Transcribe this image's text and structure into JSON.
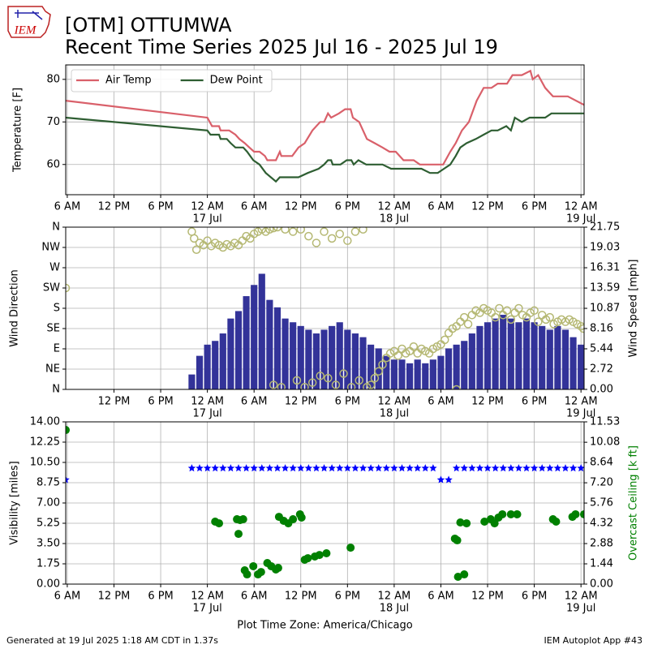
{
  "header": {
    "logo_text": "IEM",
    "title": "[OTM] OTTUMWA",
    "subtitle": "Recent Time Series 2025 Jul 16 - 2025 Jul 19"
  },
  "footer": {
    "left": "Generated at 19 Jul 2025 1:18 AM CDT in 1.37s",
    "right": "IEM Autoplot App #43"
  },
  "chart_data": [
    {
      "type": "line",
      "ylabel": "Temperature [F]",
      "grid": true,
      "legend": "upper left",
      "xlim": [
        5.8,
        72.4
      ],
      "ylim": [
        52.9,
        83.4
      ],
      "yticks": [
        60,
        70,
        80
      ],
      "xticks": [
        {
          "value": 6,
          "label": "6 AM"
        },
        {
          "value": 12,
          "label": "12 PM"
        },
        {
          "value": 18,
          "label": "6 PM"
        },
        {
          "value": 24,
          "label": "12 AM",
          "date": "17 Jul"
        },
        {
          "value": 30,
          "label": "6 AM"
        },
        {
          "value": 36,
          "label": "12 PM"
        },
        {
          "value": 42,
          "label": "6 PM"
        },
        {
          "value": 48,
          "label": "12 AM",
          "date": "18 Jul"
        },
        {
          "value": 54,
          "label": "6 AM"
        },
        {
          "value": 60,
          "label": "12 PM"
        },
        {
          "value": 66,
          "label": "6 PM"
        },
        {
          "value": 72,
          "label": "12 AM",
          "date": "19 Jul"
        }
      ],
      "series": [
        {
          "name": "Air Temp",
          "color": "#d9606a",
          "x": [
            5.8,
            24.0,
            24.6,
            25.5,
            25.7,
            26.8,
            27.6,
            28.1,
            28.8,
            29.4,
            30.0,
            30.7,
            31.4,
            31.7,
            32.8,
            33.3,
            33.5,
            34.9,
            35.7,
            36.5,
            37.5,
            38.5,
            39.0,
            39.5,
            39.9,
            40.9,
            41.7,
            42.4,
            42.7,
            43.5,
            44.5,
            45.5,
            46.5,
            47.4,
            48.2,
            49.2,
            50.5,
            51.3,
            53.6,
            54.3,
            55.2,
            55.9,
            56.7,
            57.6,
            58.6,
            59.5,
            60.5,
            61.3,
            62.5,
            63.2,
            64.4,
            65.5,
            65.8,
            66.5,
            67.4,
            68.4,
            70.3,
            72.4
          ],
          "values": [
            75,
            71,
            69,
            69,
            68,
            68,
            67,
            66,
            65,
            64,
            63,
            63,
            62,
            61,
            61,
            63,
            62,
            62,
            64,
            65,
            68,
            70,
            70,
            72,
            71,
            72,
            73,
            73,
            71,
            70,
            66,
            65,
            64,
            63,
            63,
            61,
            61,
            60,
            60,
            60,
            63,
            65,
            68,
            70,
            75,
            78,
            78,
            79,
            79,
            81,
            81,
            82,
            80,
            81,
            78,
            76,
            76,
            74
          ]
        },
        {
          "name": "Dew Point",
          "color": "#2e5e32",
          "x": [
            5.8,
            24.0,
            24.4,
            25.5,
            25.7,
            26.5,
            27.0,
            27.6,
            28.6,
            29.1,
            29.9,
            30.7,
            31.5,
            32.8,
            33.3,
            35.7,
            36.9,
            38.3,
            39.0,
            39.5,
            39.9,
            40.1,
            41.1,
            41.9,
            42.5,
            42.8,
            43.4,
            44.4,
            46.5,
            47.6,
            51.5,
            52.6,
            53.6,
            54.4,
            55.2,
            55.9,
            56.5,
            57.3,
            58.5,
            59.5,
            60.5,
            61.3,
            62.4,
            63.0,
            63.5,
            64.4,
            65.4,
            67.4,
            68.2,
            72.4
          ],
          "values": [
            71,
            68,
            67,
            67,
            66,
            66,
            65,
            64,
            64,
            63,
            61,
            60,
            58,
            56,
            57,
            57,
            58,
            59,
            60,
            61,
            61,
            60,
            60,
            61,
            61,
            60,
            61,
            60,
            60,
            59,
            59,
            58,
            58,
            59,
            60,
            62,
            64,
            65,
            66,
            67,
            68,
            68,
            69,
            68,
            71,
            70,
            71,
            71,
            72,
            72
          ]
        }
      ]
    },
    {
      "type": "combo",
      "ylabel": "Wind Direction",
      "y2label": "Wind Speed [mph]",
      "grid": true,
      "xlim": [
        5.8,
        72.4
      ],
      "ylim": [
        0,
        360
      ],
      "y2lim": [
        0,
        21.75
      ],
      "yticks": [
        {
          "value": 0,
          "label": "N"
        },
        {
          "value": 45,
          "label": "NE"
        },
        {
          "value": 90,
          "label": "E"
        },
        {
          "value": 135,
          "label": "SE"
        },
        {
          "value": 180,
          "label": "S"
        },
        {
          "value": 225,
          "label": "SW"
        },
        {
          "value": 270,
          "label": "W"
        },
        {
          "value": 315,
          "label": "NW"
        },
        {
          "value": 360,
          "label": "N"
        }
      ],
      "y2ticks": [
        {
          "value": 0,
          "label": "0.00"
        },
        2.72,
        5.44,
        8.16,
        10.87,
        13.59,
        16.31,
        19.03,
        21.75
      ],
      "xticks": [
        {
          "value": 12,
          "label": "12 PM"
        },
        {
          "value": 18,
          "label": "6 PM"
        },
        {
          "value": 24,
          "label": "12 AM",
          "date": "17 Jul"
        },
        {
          "value": 30,
          "label": "6 AM"
        },
        {
          "value": 36,
          "label": "12 PM"
        },
        {
          "value": 42,
          "label": "6 PM"
        },
        {
          "value": 48,
          "label": "12 AM",
          "date": "18 Jul"
        },
        {
          "value": 54,
          "label": "6 AM"
        },
        {
          "value": 60,
          "label": "12 PM"
        },
        {
          "value": 66,
          "label": "6 PM"
        },
        {
          "value": 72,
          "label": "12 AM",
          "date": "19 Jul"
        }
      ],
      "series": [
        {
          "kind": "bar",
          "axis": "y2",
          "color": "#333399",
          "x": [
            22,
            23,
            24,
            25,
            26,
            27,
            28,
            29,
            30,
            31,
            32,
            33,
            34,
            35,
            36,
            37,
            38,
            39,
            40,
            41,
            42,
            43,
            44,
            45,
            46,
            47,
            48,
            49,
            50,
            51,
            52,
            53,
            54,
            55,
            56,
            57,
            58,
            59,
            60,
            61,
            62,
            63,
            64,
            65,
            66,
            67,
            68,
            69,
            70,
            71,
            72
          ],
          "values": [
            2,
            4.5,
            6,
            6.5,
            7.5,
            9.5,
            10.5,
            12.5,
            14,
            15.5,
            12,
            11,
            9.5,
            9,
            8.5,
            8,
            7.5,
            8,
            8.5,
            9,
            8,
            7.5,
            7,
            6,
            5.5,
            4.5,
            4,
            4,
            3.5,
            4,
            3.5,
            4,
            4.5,
            5.5,
            6,
            6.5,
            7.5,
            8.5,
            9,
            9.5,
            10,
            9.5,
            9,
            9.5,
            9,
            8.5,
            8,
            8.5,
            8,
            7,
            6
          ]
        },
        {
          "kind": "scatter",
          "color": "#b5b873",
          "x": [
            5.8,
            22.0,
            22.3,
            22.6,
            23.0,
            23.5,
            24.0,
            24.5,
            25.0,
            25.5,
            26.0,
            26.5,
            27.0,
            27.5,
            28.0,
            28.5,
            29.0,
            29.5,
            30.0,
            30.5,
            31.0,
            31.5,
            32.0,
            32.5,
            33.0,
            34.0,
            35.0,
            36.0,
            37.0,
            38.0,
            39.0,
            40.0,
            41.0,
            42.0,
            43.0,
            44.0,
            32.5,
            33.5,
            35.5,
            36.5,
            37.5,
            38.5,
            39.5,
            40.5,
            41.5,
            42.5,
            43.5,
            44.5,
            45.0,
            45.5,
            46.0,
            46.5,
            47.0,
            47.5,
            48.0,
            48.5,
            49.0,
            49.5,
            50.0,
            50.5,
            51.0,
            51.5,
            52.0,
            52.5,
            53.0,
            53.5,
            54.0,
            54.5,
            55.0,
            55.5,
            56.0,
            56.5,
            57.0,
            57.5,
            58.0,
            58.5,
            59.0,
            59.5,
            60.0,
            60.5,
            61.0,
            61.5,
            62.0,
            62.5,
            63.0,
            63.5,
            64.0,
            64.5,
            65.0,
            65.5,
            66.0,
            66.5,
            67.0,
            67.5,
            68.0,
            68.5,
            69.0,
            69.5,
            70.0,
            70.5,
            71.0,
            71.5,
            72.0,
            72.3,
            56.0
          ],
          "values": [
            225,
            350,
            335,
            310,
            325,
            320,
            330,
            318,
            325,
            320,
            315,
            322,
            318,
            325,
            320,
            330,
            340,
            335,
            345,
            350,
            355,
            350,
            355,
            358,
            360,
            355,
            350,
            355,
            340,
            325,
            350,
            335,
            345,
            330,
            350,
            355,
            10,
            5,
            20,
            5,
            15,
            30,
            25,
            10,
            35,
            5,
            20,
            5,
            10,
            25,
            40,
            55,
            70,
            80,
            85,
            75,
            90,
            80,
            85,
            95,
            80,
            90,
            85,
            80,
            90,
            95,
            100,
            110,
            125,
            135,
            140,
            150,
            160,
            145,
            165,
            175,
            170,
            180,
            175,
            170,
            160,
            180,
            165,
            175,
            155,
            170,
            180,
            165,
            160,
            170,
            175,
            150,
            165,
            155,
            160,
            145,
            150,
            155,
            150,
            155,
            150,
            145,
            140,
            135,
            0
          ]
        }
      ]
    },
    {
      "type": "scatter",
      "ylabel": "Visibility [miles]",
      "y2label": "Overcast Ceiling [k ft]",
      "xlabel": "Plot Time Zone: America/Chicago",
      "grid": true,
      "xlim": [
        5.8,
        72.4
      ],
      "ylim": [
        0,
        14
      ],
      "y2lim": [
        0,
        11.53
      ],
      "yticks": [
        {
          "value": 0,
          "label": "0.00"
        },
        1.75,
        {
          "value": 3.5,
          "label": "3.50"
        },
        5.25,
        {
          "value": 7,
          "label": "7.00"
        },
        8.75,
        {
          "value": 10.5,
          "label": "10.50"
        },
        12.25,
        {
          "value": 14,
          "label": "14.00"
        }
      ],
      "y2ticks": [
        {
          "value": 0,
          "label": "0.00"
        },
        1.44,
        2.88,
        4.32,
        5.76,
        {
          "value": 7.2,
          "label": "7.20"
        },
        8.64,
        10.08,
        11.53
      ],
      "xticks": [
        {
          "value": 6,
          "label": "6 AM"
        },
        {
          "value": 12,
          "label": "12 PM"
        },
        {
          "value": 18,
          "label": "6 PM"
        },
        {
          "value": 24,
          "label": "12 AM",
          "date": "17 Jul"
        },
        {
          "value": 30,
          "label": "6 AM"
        },
        {
          "value": 36,
          "label": "12 PM"
        },
        {
          "value": 42,
          "label": "6 PM"
        },
        {
          "value": 48,
          "label": "12 AM",
          "date": "18 Jul"
        },
        {
          "value": 54,
          "label": "6 AM"
        },
        {
          "value": 60,
          "label": "12 PM"
        },
        {
          "value": 66,
          "label": "6 PM"
        },
        {
          "value": 72,
          "label": "12 AM",
          "date": "19 Jul"
        }
      ],
      "series": [
        {
          "marker": "star",
          "color": "#0000ff",
          "x": [
            5.8,
            22,
            23,
            24,
            25,
            26,
            27,
            28,
            29,
            30,
            31,
            32,
            33,
            34,
            35,
            36,
            37,
            38,
            39,
            40,
            41,
            42,
            43,
            44,
            45,
            46,
            47,
            48,
            49,
            50,
            51,
            52,
            53,
            54,
            55,
            56,
            57,
            58,
            59,
            60,
            61,
            62,
            63,
            64,
            65,
            66,
            67,
            68,
            69,
            70,
            71,
            72
          ],
          "values": [
            9,
            10,
            10,
            10,
            10,
            10,
            10,
            10,
            10,
            10,
            10,
            10,
            10,
            10,
            10,
            10,
            10,
            10,
            10,
            10,
            10,
            10,
            10,
            10,
            10,
            10,
            10,
            10,
            10,
            10,
            10,
            10,
            10,
            9,
            9,
            10,
            10,
            10,
            10,
            10,
            10,
            10,
            10,
            10,
            10,
            10,
            10,
            10,
            10,
            10,
            10,
            10
          ]
        },
        {
          "marker": "circle",
          "axis": "y2",
          "color": "#008000",
          "x": [
            5.8,
            25.0,
            25.5,
            27.8,
            28.2,
            28.6,
            28.0,
            28.8,
            29.1,
            29.9,
            30.5,
            30.9,
            31.7,
            32.2,
            32.8,
            33.1,
            33.2,
            33.8,
            34.4,
            35.0,
            35.9,
            36.1,
            36.5,
            36.9,
            37.8,
            38.4,
            39.3,
            42.4,
            55.8,
            56.1,
            56.2,
            57.0,
            56.5,
            57.3,
            59.6,
            60.4,
            60.9,
            61.4,
            61.9,
            63.0,
            63.8,
            68.4,
            68.8,
            70.9,
            71.3,
            72.4
          ],
          "values": [
            10.95,
            4.44,
            4.32,
            4.61,
            4.55,
            4.61,
            3.57,
            0.98,
            0.69,
            1.27,
            0.69,
            0.86,
            1.5,
            1.27,
            1.04,
            1.15,
            4.78,
            4.5,
            4.32,
            4.61,
            4.96,
            4.73,
            1.73,
            1.84,
            1.96,
            2.07,
            2.19,
            2.59,
            3.23,
            3.11,
            0.52,
            0.69,
            4.38,
            4.32,
            4.44,
            4.61,
            4.32,
            4.73,
            4.96,
            4.96,
            4.96,
            4.61,
            4.44,
            4.78,
            4.96,
            4.96
          ]
        }
      ]
    }
  ]
}
